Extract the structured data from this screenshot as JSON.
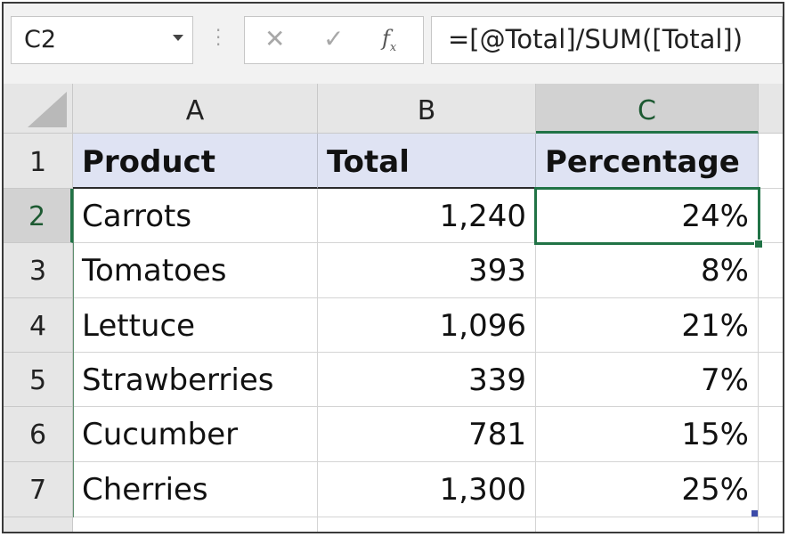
{
  "name_box": {
    "value": "C2"
  },
  "formula_bar": {
    "cancel_icon": "✕",
    "enter_icon": "✓",
    "fx_label": "f",
    "fx_sub": "x",
    "formula": "=[@Total]/SUM([Total])"
  },
  "columns": [
    "A",
    "B",
    "C"
  ],
  "rows": [
    "1",
    "2",
    "3",
    "4",
    "5",
    "6",
    "7"
  ],
  "table": {
    "headers": [
      "Product",
      "Total",
      "Percentage"
    ],
    "data": [
      [
        "Carrots",
        "1,240",
        "24%"
      ],
      [
        "Tomatoes",
        "393",
        "8%"
      ],
      [
        "Lettuce",
        "1,096",
        "21%"
      ],
      [
        "Strawberries",
        "339",
        "7%"
      ],
      [
        "Cucumber",
        "781",
        "15%"
      ],
      [
        "Cherries",
        "1,300",
        "25%"
      ]
    ]
  },
  "active_cell": {
    "column": "C",
    "row": "2"
  },
  "colors": {
    "selection": "#217346",
    "table_header_fill": "#dfe3f3",
    "header_gray": "#e6e6e6"
  }
}
